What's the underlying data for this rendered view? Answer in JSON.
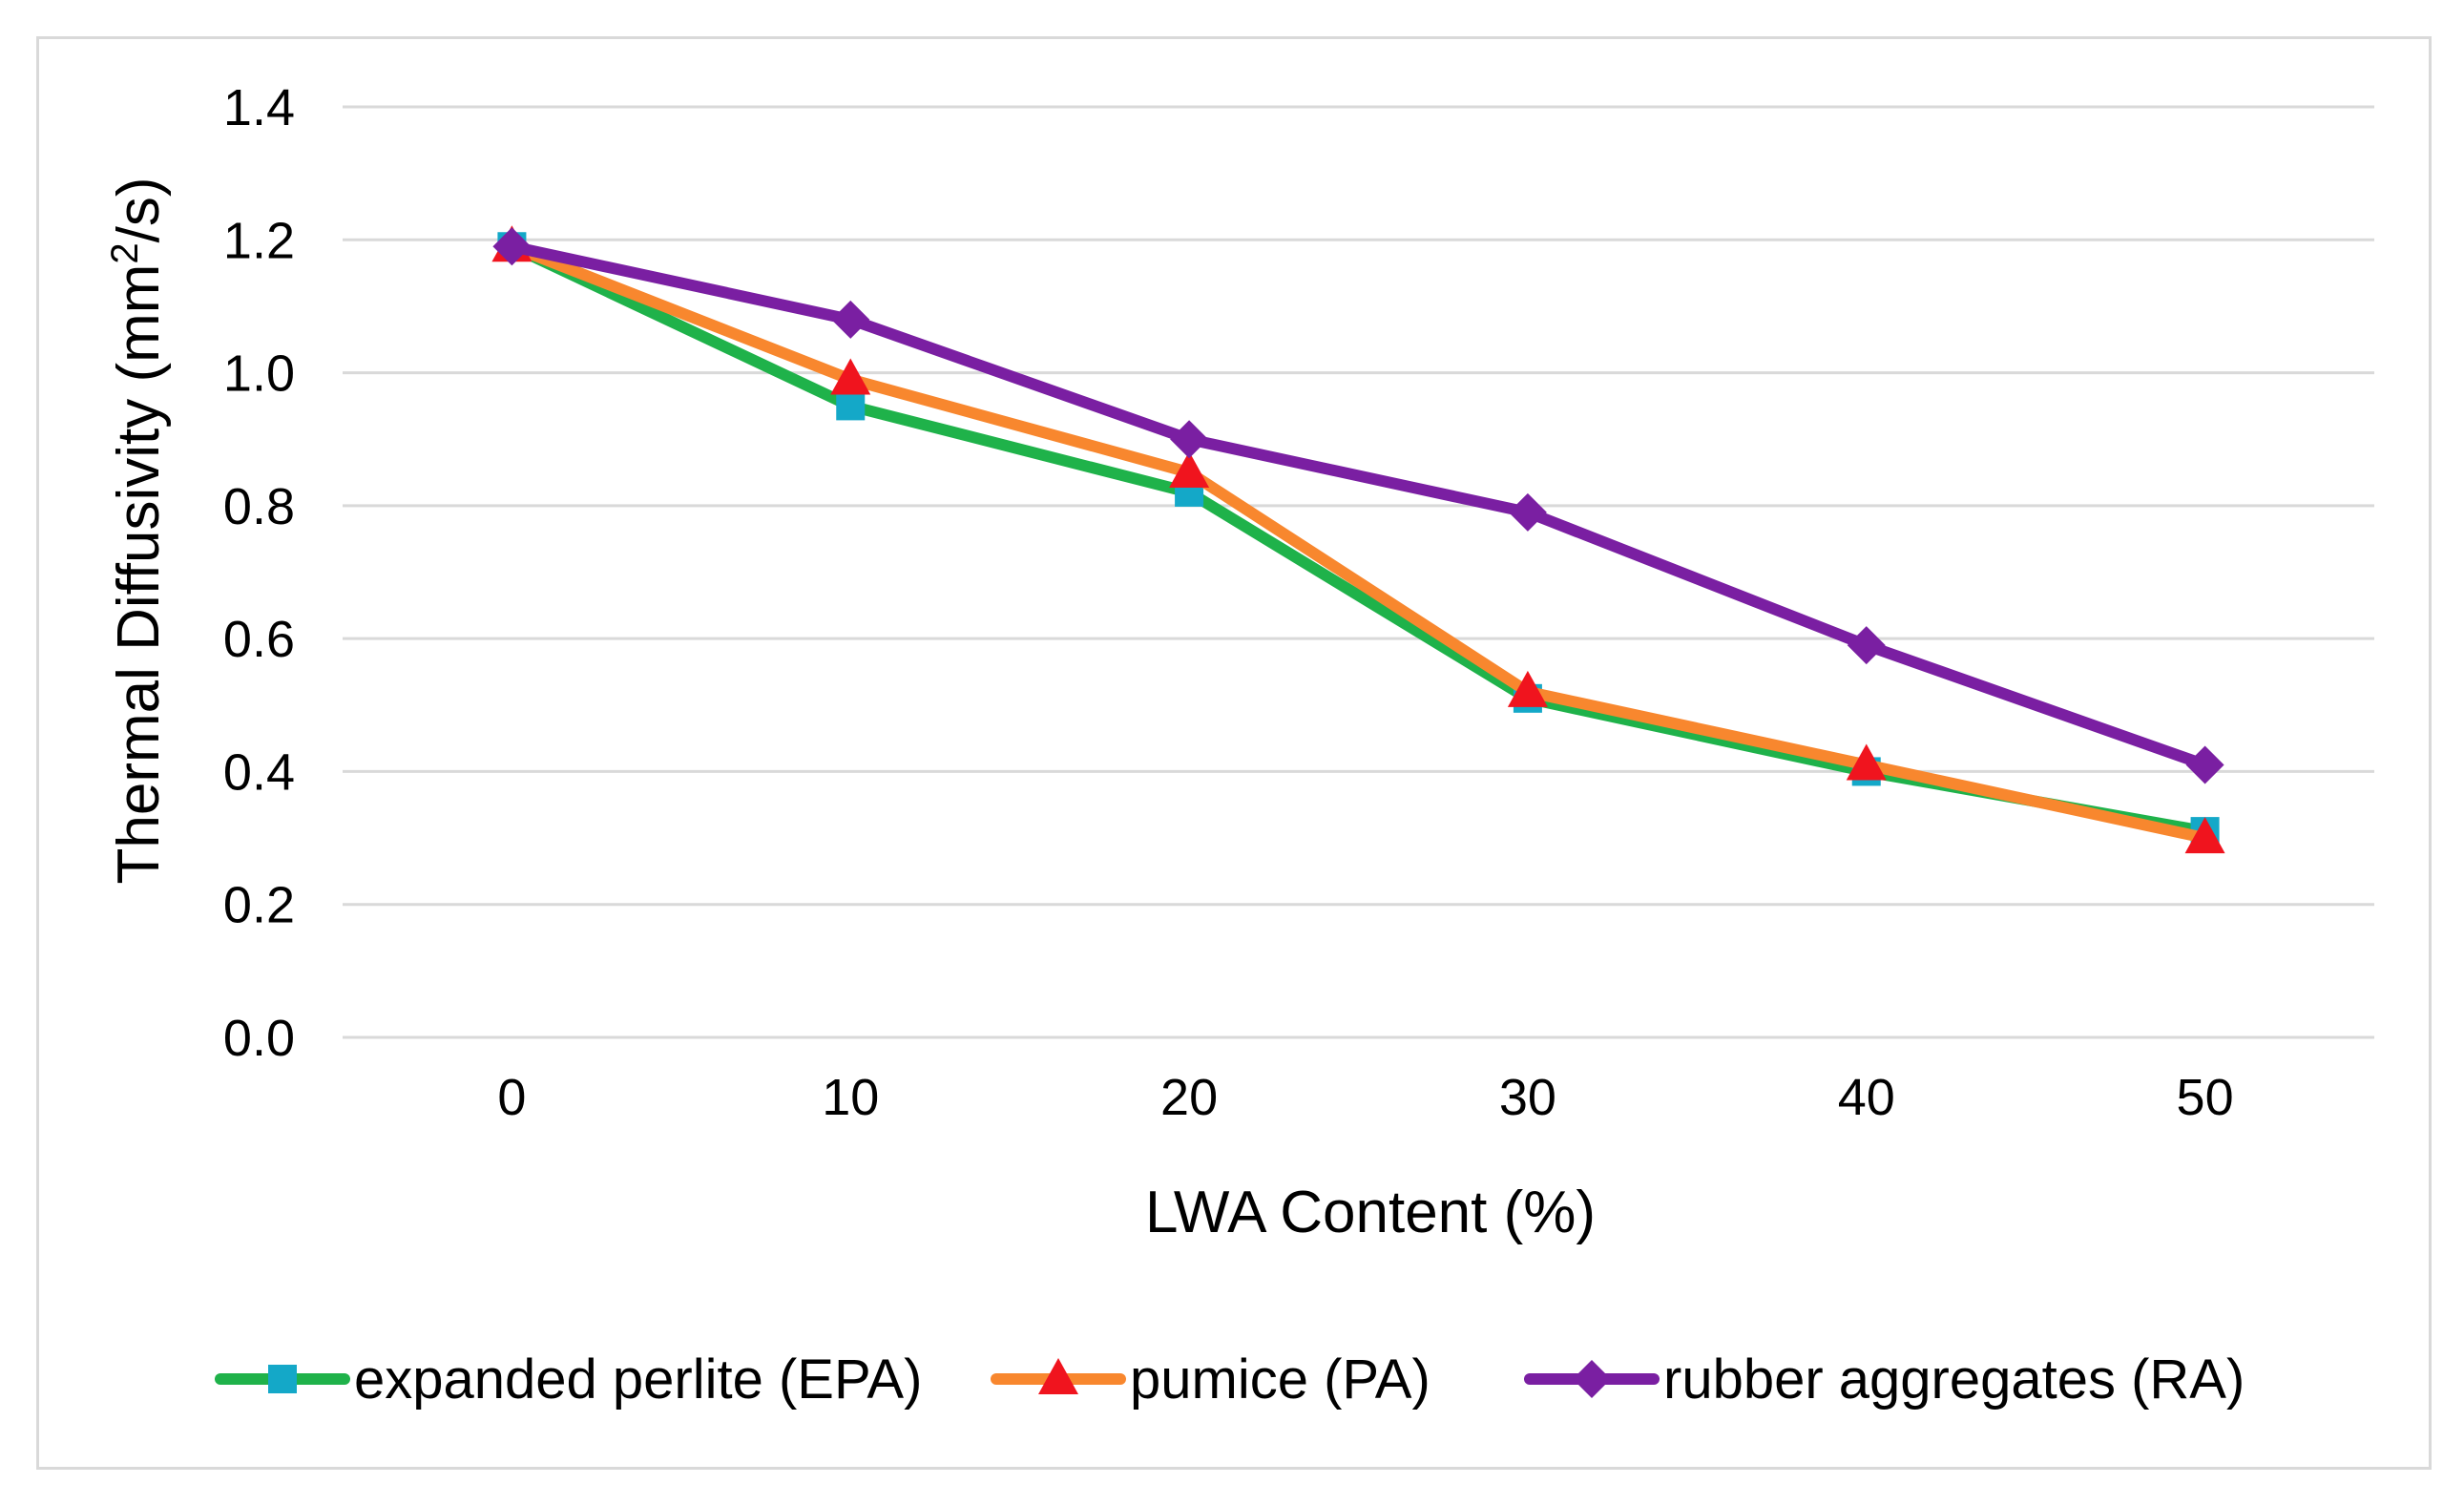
{
  "chart_data": {
    "type": "line",
    "title": "",
    "xlabel": "LWA Content (%)",
    "ylabel": "Thermal Diffusivity (mm²/s)",
    "ylabel_prefix": "Thermal Diffusivity (mm",
    "ylabel_sup": "2",
    "ylabel_suffix": "/s)",
    "x": [
      0,
      10,
      20,
      30,
      40,
      50
    ],
    "x_tick_labels": [
      "0",
      "10",
      "20",
      "30",
      "40",
      "50"
    ],
    "ylim": [
      0.0,
      1.4
    ],
    "y_ticks": [
      0.0,
      0.2,
      0.4,
      0.6,
      0.8,
      1.0,
      1.2,
      1.4
    ],
    "y_tick_labels": [
      "0.0",
      "0.2",
      "0.4",
      "0.6",
      "0.8",
      "1.0",
      "1.2",
      "1.4"
    ],
    "grid": true,
    "legend_position": "bottom",
    "series": [
      {
        "name": "expanded perlite (EPA)",
        "values": [
          1.19,
          0.95,
          0.82,
          0.51,
          0.4,
          0.31
        ],
        "line_color": "#1fb24a",
        "marker": "square",
        "marker_color": "#14a8c8"
      },
      {
        "name": "pumice (PA)",
        "values": [
          1.19,
          0.99,
          0.85,
          0.52,
          0.41,
          0.3
        ],
        "line_color": "#f8872e",
        "marker": "triangle",
        "marker_color": "#f0141e"
      },
      {
        "name": "rubber aggregates (RA)",
        "values": [
          1.19,
          1.08,
          0.9,
          0.79,
          0.59,
          0.41
        ],
        "line_color": "#7a1fa2",
        "marker": "diamond",
        "marker_color": "#7a1fa2"
      }
    ]
  }
}
